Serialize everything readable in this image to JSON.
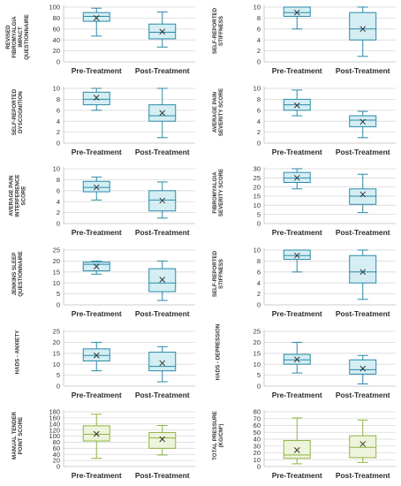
{
  "chart_data": [
    {
      "type": "box",
      "ylabel": "REVISED FIBROMYALGIA IMPACT QUESTIONNAIRE",
      "yticks": [
        0,
        20,
        40,
        60,
        80,
        100
      ],
      "ylim": [
        0,
        100
      ],
      "categories": [
        "Pre-Treatment",
        "Post-Treatment"
      ],
      "boxes": [
        {
          "whisker_low": 47,
          "q1": 74,
          "median": 83,
          "q3": 90,
          "whisker_high": 98,
          "mean": 80
        },
        {
          "whisker_low": 27,
          "q1": 42,
          "median": 54,
          "q3": 69,
          "whisker_high": 91,
          "mean": 55
        }
      ]
    },
    {
      "type": "box",
      "ylabel": "SELF-REPORTED STIFFNESS",
      "yticks": [
        0,
        2,
        4,
        6,
        8,
        10
      ],
      "ylim": [
        0,
        10
      ],
      "categories": [
        "Pre-Treatment",
        "Post-Treatment"
      ],
      "boxes": [
        {
          "whisker_low": 6,
          "q1": 8.3,
          "median": 9,
          "q3": 10,
          "whisker_high": 10,
          "mean": 9
        },
        {
          "whisker_low": 1,
          "q1": 4,
          "median": 6,
          "q3": 9,
          "whisker_high": 10,
          "mean": 6
        }
      ]
    },
    {
      "type": "box",
      "ylabel": "SELF-REPORTED DYSCOGNITION",
      "yticks": [
        0,
        2,
        4,
        6,
        8,
        10
      ],
      "ylim": [
        0,
        10
      ],
      "categories": [
        "Pre-Treatment",
        "Post-Treatment"
      ],
      "boxes": [
        {
          "whisker_low": 6,
          "q1": 7,
          "median": 8,
          "q3": 9.3,
          "whisker_high": 10,
          "mean": 8.3
        },
        {
          "whisker_low": 1,
          "q1": 4,
          "median": 5,
          "q3": 7,
          "whisker_high": 10,
          "mean": 5.5
        }
      ]
    },
    {
      "type": "box",
      "ylabel": "AVERAGE PAIN SEVERITY SCORE",
      "yticks": [
        0,
        2,
        4,
        6,
        8,
        10
      ],
      "ylim": [
        0,
        10
      ],
      "categories": [
        "Pre-Treatment",
        "Post-Treatment"
      ],
      "boxes": [
        {
          "whisker_low": 5,
          "q1": 6,
          "median": 7,
          "q3": 8,
          "whisker_high": 9.7,
          "mean": 6.9
        },
        {
          "whisker_low": 1,
          "q1": 3,
          "median": 4.2,
          "q3": 5,
          "whisker_high": 5.8,
          "mean": 3.9
        }
      ]
    },
    {
      "type": "box",
      "ylabel": "AVERAGE PAIN INTERFERENCE SCORE",
      "yticks": [
        0,
        2,
        4,
        6,
        8,
        10
      ],
      "ylim": [
        0,
        10
      ],
      "categories": [
        "Pre-Treatment",
        "Post-Treatment"
      ],
      "boxes": [
        {
          "whisker_low": 4.3,
          "q1": 5.8,
          "median": 6.6,
          "q3": 7.7,
          "whisker_high": 8.5,
          "mean": 6.6
        },
        {
          "whisker_low": 1,
          "q1": 2.3,
          "median": 4.3,
          "q3": 6,
          "whisker_high": 7.6,
          "mean": 4.2
        }
      ]
    },
    {
      "type": "box",
      "ylabel": "FIBROMYALGIA SEVERITY SCORE",
      "yticks": [
        0,
        5,
        10,
        15,
        20,
        25,
        30
      ],
      "ylim": [
        0,
        30
      ],
      "categories": [
        "Pre-Treatment",
        "Post-Treatment"
      ],
      "boxes": [
        {
          "whisker_low": 19,
          "q1": 22.5,
          "median": 25,
          "q3": 28,
          "whisker_high": 30,
          "mean": 25
        },
        {
          "whisker_low": 6,
          "q1": 10.5,
          "median": 15,
          "q3": 19,
          "whisker_high": 27,
          "mean": 16
        }
      ]
    },
    {
      "type": "box",
      "ylabel": "JENKINS SLEEP QUESTIONNAIRE",
      "yticks": [
        0,
        5,
        10,
        15,
        20,
        25
      ],
      "ylim": [
        0,
        25
      ],
      "categories": [
        "Pre-Treatment",
        "Post-Treatment"
      ],
      "boxes": [
        {
          "whisker_low": 14,
          "q1": 15.5,
          "median": 18.5,
          "q3": 19.5,
          "whisker_high": 20,
          "mean": 17.5
        },
        {
          "whisker_low": 2,
          "q1": 6,
          "median": 10,
          "q3": 16.5,
          "whisker_high": 20,
          "mean": 11.5
        }
      ]
    },
    {
      "type": "box",
      "ylabel": "SELF-REPORTED STIFFNESS",
      "yticks": [
        0,
        2,
        4,
        6,
        8,
        10
      ],
      "ylim": [
        0,
        10
      ],
      "categories": [
        "Pre-Treatment",
        "Post-Treatment"
      ],
      "boxes": [
        {
          "whisker_low": 6,
          "q1": 8.3,
          "median": 9,
          "q3": 10,
          "whisker_high": 10,
          "mean": 9
        },
        {
          "whisker_low": 1,
          "q1": 4,
          "median": 6,
          "q3": 9,
          "whisker_high": 10,
          "mean": 6
        }
      ]
    },
    {
      "type": "box",
      "ylabel": "HADS - ANXIETY",
      "yticks": [
        0,
        5,
        10,
        15,
        20,
        25
      ],
      "ylim": [
        0,
        25
      ],
      "categories": [
        "Pre-Treatment",
        "Post-Treatment"
      ],
      "boxes": [
        {
          "whisker_low": 7,
          "q1": 11.5,
          "median": 14,
          "q3": 17,
          "whisker_high": 20,
          "mean": 14
        },
        {
          "whisker_low": 2,
          "q1": 7,
          "median": 9,
          "q3": 15.5,
          "whisker_high": 18,
          "mean": 10.5
        }
      ]
    },
    {
      "type": "box",
      "ylabel": "HADS - DEPRESSION",
      "yticks": [
        0,
        5,
        10,
        15,
        20,
        25
      ],
      "ylim": [
        0,
        25
      ],
      "categories": [
        "Pre-Treatment",
        "Post-Treatment"
      ],
      "boxes": [
        {
          "whisker_low": 6,
          "q1": 10,
          "median": 12,
          "q3": 14.5,
          "whisker_high": 20,
          "mean": 12.2
        },
        {
          "whisker_low": 1,
          "q1": 5.5,
          "median": 7.5,
          "q3": 12,
          "whisker_high": 14,
          "mean": 8
        }
      ]
    },
    {
      "type": "box",
      "ylabel": "MANUAL TENDER POINT SCORE",
      "yticks": [
        0,
        20,
        40,
        60,
        80,
        100,
        120,
        140,
        160,
        180
      ],
      "ylim": [
        0,
        180
      ],
      "categories": [
        "Pre-Treatment",
        "Post-Treatment"
      ],
      "boxes": [
        {
          "whisker_low": 27,
          "q1": 84,
          "median": 106,
          "q3": 134,
          "whisker_high": 172,
          "mean": 107
        },
        {
          "whisker_low": 38,
          "q1": 60,
          "median": 94,
          "q3": 112,
          "whisker_high": 135,
          "mean": 90
        }
      ]
    },
    {
      "type": "box",
      "ylabel": "TOTAL PRESSURE (KG/CM²)",
      "yticks": [
        0,
        10,
        20,
        30,
        40,
        50,
        60,
        70,
        80
      ],
      "ylim": [
        0,
        80
      ],
      "categories": [
        "Pre-Treatment",
        "Post-Treatment"
      ],
      "boxes": [
        {
          "whisker_low": 4,
          "q1": 12,
          "median": 17,
          "q3": 38,
          "whisker_high": 71,
          "mean": 24
        },
        {
          "whisker_low": 6,
          "q1": 13,
          "median": 28,
          "q3": 45,
          "whisker_high": 68,
          "mean": 33
        }
      ]
    }
  ],
  "style": {
    "blue_stroke": "#2a8aa8",
    "blue_fill": "#d4eef4",
    "green_stroke": "#8fb443",
    "green_fill": "#eef4dc",
    "grid_color": "#d9d9d9",
    "axis_color": "#bfbfbf",
    "green_panels": [
      10,
      11
    ]
  }
}
